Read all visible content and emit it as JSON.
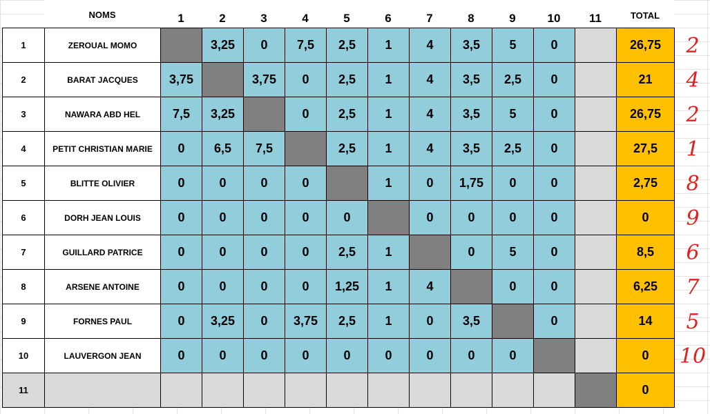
{
  "header": {
    "names_label": "NOMS",
    "columns": [
      "1",
      "2",
      "3",
      "4",
      "5",
      "6",
      "7",
      "8",
      "9",
      "10",
      "11"
    ],
    "total_label": "TOTAL"
  },
  "rows": [
    {
      "num": "1",
      "name": "ZEROUAL  MOMO",
      "cells": [
        "",
        "3,25",
        "0",
        "7,5",
        "2,5",
        "1",
        "4",
        "3,5",
        "5",
        "0",
        ""
      ],
      "total": "26,75",
      "rank": "2"
    },
    {
      "num": "2",
      "name": "BARAT  JACQUES",
      "cells": [
        "3,75",
        "",
        "3,75",
        "0",
        "2,5",
        "1",
        "4",
        "3,5",
        "2,5",
        "0",
        ""
      ],
      "total": "21",
      "rank": "4"
    },
    {
      "num": "3",
      "name": "NAWARA  ABD HEL",
      "cells": [
        "7,5",
        "3,25",
        "",
        "0",
        "2,5",
        "1",
        "4",
        "3,5",
        "5",
        "0",
        ""
      ],
      "total": "26,75",
      "rank": "2"
    },
    {
      "num": "4",
      "name": "PETIT  CHRISTIAN  MARIE",
      "cells": [
        "0",
        "6,5",
        "7,5",
        "",
        "2,5",
        "1",
        "4",
        "3,5",
        "2,5",
        "0",
        ""
      ],
      "total": "27,5",
      "rank": "1"
    },
    {
      "num": "5",
      "name": "BLITTE  OLIVIER",
      "cells": [
        "0",
        "0",
        "0",
        "0",
        "",
        "1",
        "0",
        "1,75",
        "0",
        "0",
        ""
      ],
      "total": "2,75",
      "rank": "8"
    },
    {
      "num": "6",
      "name": "DORH   JEAN LOUIS",
      "cells": [
        "0",
        "0",
        "0",
        "0",
        "0",
        "",
        "0",
        "0",
        "0",
        "0",
        ""
      ],
      "total": "0",
      "rank": "9"
    },
    {
      "num": "7",
      "name": "GUILLARD  PATRICE",
      "cells": [
        "0",
        "0",
        "0",
        "0",
        "2,5",
        "1",
        "",
        "0",
        "5",
        "0",
        ""
      ],
      "total": "8,5",
      "rank": "6"
    },
    {
      "num": "8",
      "name": "ARSENE   ANTOINE",
      "cells": [
        "0",
        "0",
        "0",
        "0",
        "1,25",
        "1",
        "4",
        "",
        "0",
        "0",
        ""
      ],
      "total": "6,25",
      "rank": "7"
    },
    {
      "num": "9",
      "name": "FORNES   PAUL",
      "cells": [
        "0",
        "3,25",
        "0",
        "3,75",
        "2,5",
        "1",
        "0",
        "3,5",
        "",
        "0",
        ""
      ],
      "total": "14",
      "rank": "5"
    },
    {
      "num": "10",
      "name": "LAUVERGON   JEAN",
      "cells": [
        "0",
        "0",
        "0",
        "0",
        "0",
        "0",
        "0",
        "0",
        "0",
        "",
        ""
      ],
      "total": "0",
      "rank": "10"
    },
    {
      "num": "11",
      "name": "",
      "cells": [
        "",
        "",
        "",
        "",
        "",
        "",
        "",
        "",
        "",
        "",
        ""
      ],
      "total": "0",
      "rank": ""
    }
  ],
  "colors": {
    "cell_fill": "#92cddc",
    "diagonal_fill": "#808080",
    "empty_fill": "#d9d9d9",
    "total_fill": "#ffc000",
    "rank_color": "#e0201e"
  }
}
